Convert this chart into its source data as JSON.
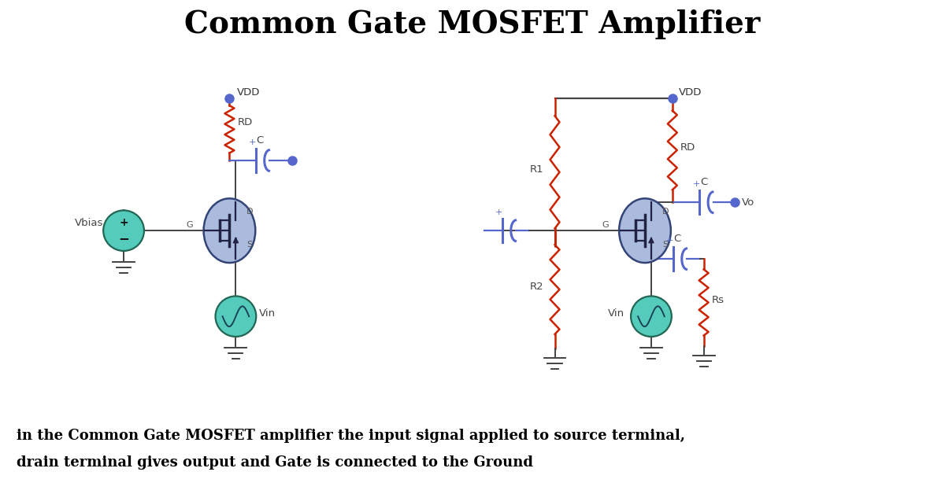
{
  "title": "Common Gate MOSFET Amplifier",
  "title_fontsize": 28,
  "title_fontweight": "bold",
  "caption_line1": "in the Common Gate MOSFET amplifier the input signal applied to source terminal,",
  "caption_line2": "drain terminal gives output and Gate is connected to the Ground",
  "caption_fontsize": 13,
  "caption_fontweight": "bold",
  "bg_color": "#ffffff",
  "wire_color": "#444444",
  "red_color": "#cc2200",
  "blue_color": "#5566cc",
  "mosfet_fill": "#aabbdd",
  "teal_fill": "#55ccbb",
  "cap_color": "#5566cc",
  "dc_color": "#222244",
  "ground_color": "#333333"
}
